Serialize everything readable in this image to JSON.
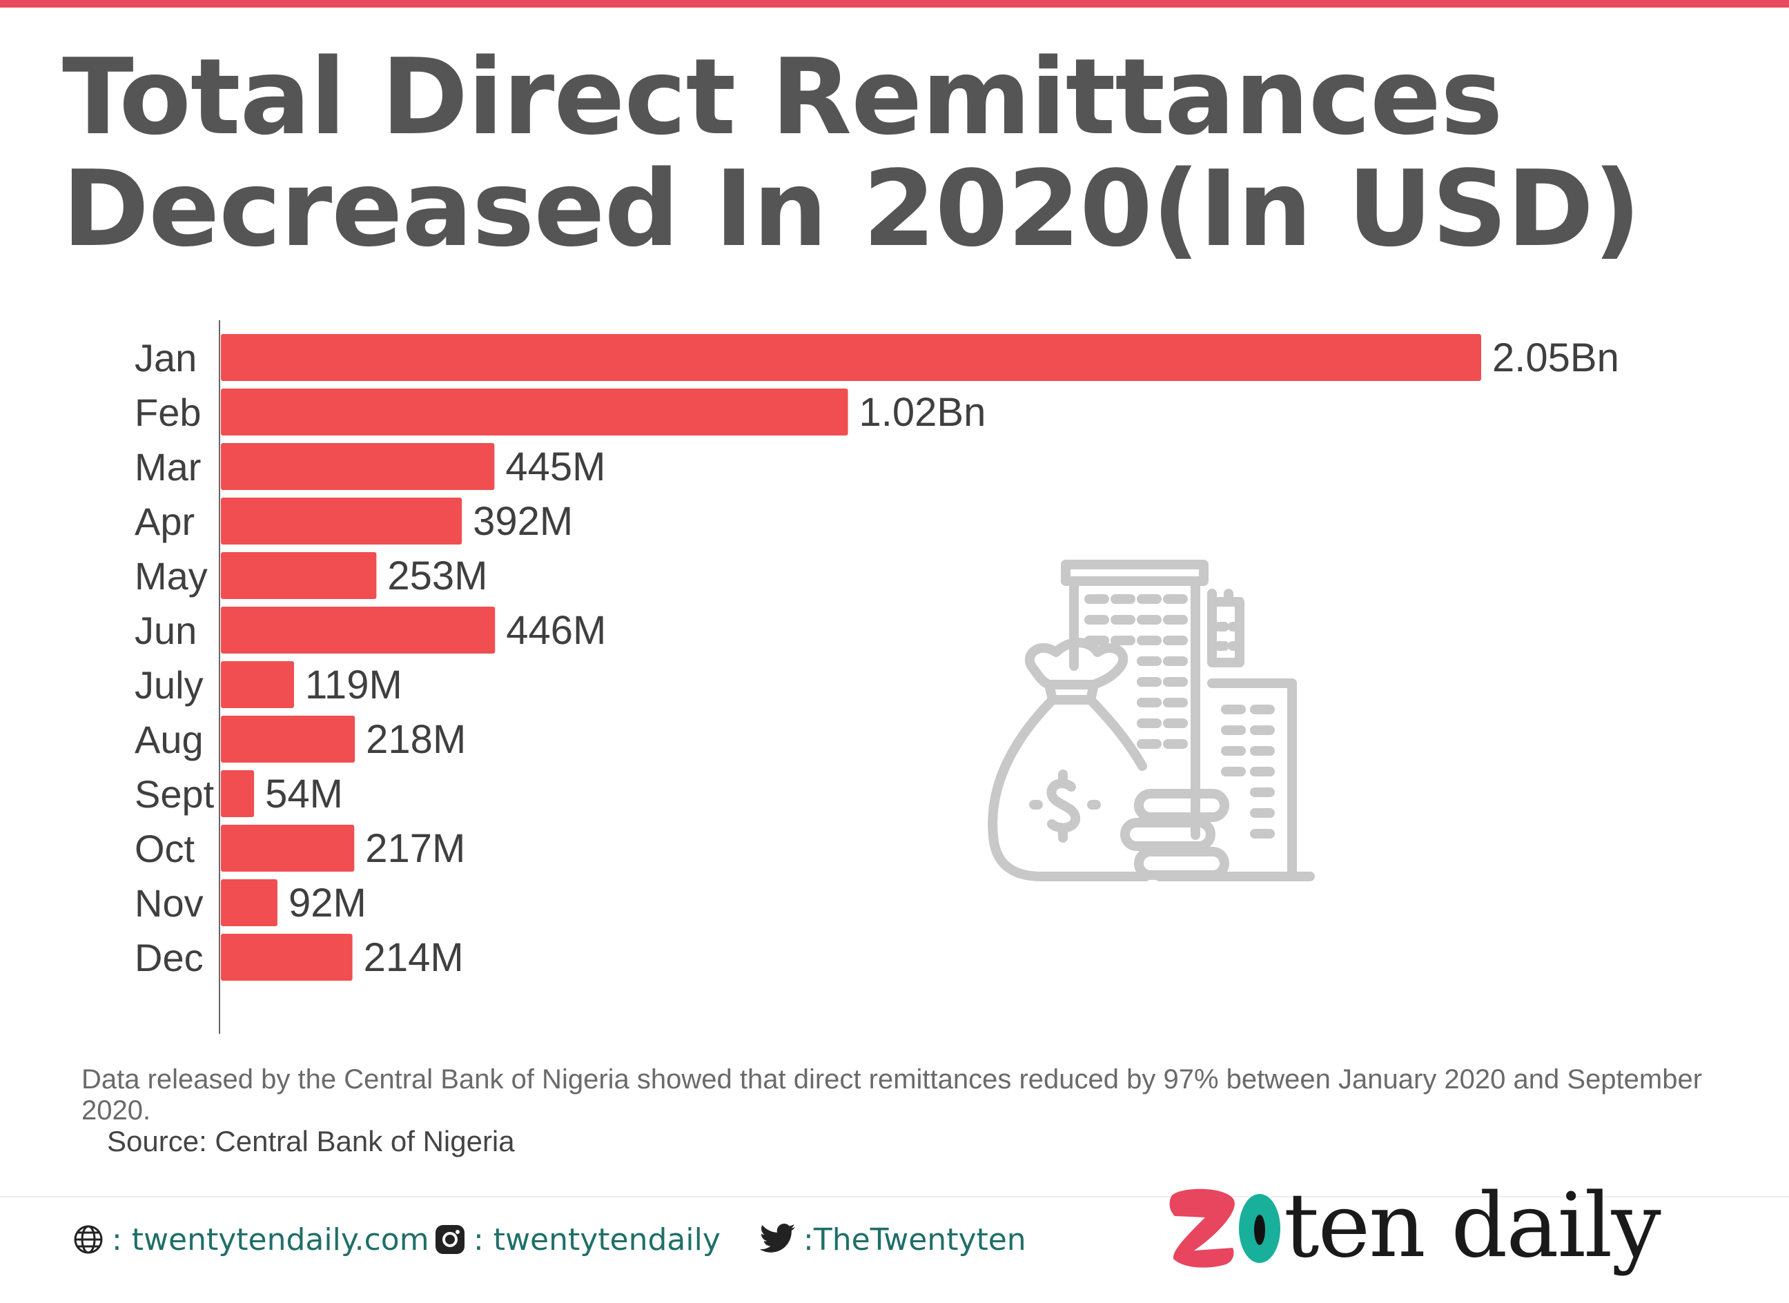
{
  "header": {
    "title": "Total Direct Remittances Decreased In 2020(In USD)"
  },
  "colors": {
    "accent": "#e84a5f",
    "bar": "#f04e51",
    "text": "#555555",
    "footer_text": "#1f6f68",
    "illustration": "#c8c8c8"
  },
  "chart_data": {
    "type": "bar",
    "orientation": "horizontal",
    "categories": [
      "Jan",
      "Feb",
      "Mar",
      "Apr",
      "May",
      "Jun",
      "July",
      "Aug",
      "Sept",
      "Oct",
      "Nov",
      "Dec"
    ],
    "values": [
      2050000000,
      1020000000,
      445000000,
      392000000,
      253000000,
      446000000,
      119000000,
      218000000,
      54000000,
      217000000,
      92000000,
      214000000
    ],
    "data_labels": [
      "2.05Bn",
      "1.02Bn",
      "445M",
      "392M",
      "253M",
      "446M",
      "119M",
      "218M",
      "54M",
      "217M",
      "92M",
      "214M"
    ],
    "title": "Total Direct Remittances Decreased In 2020(In USD)",
    "xlabel": "",
    "ylabel": "",
    "grid": false,
    "legend": "none"
  },
  "note": "Data released by the Central Bank of Nigeria showed that direct remittances reduced by 97% between January 2020 and September 2020.",
  "source": "Source: Central Bank of Nigeria",
  "footer": {
    "website": ": twentytendaily.com",
    "instagram": ": twentytendaily",
    "twitter": ":TheTwentyten",
    "brand": "ten daily",
    "icons": [
      "globe-icon",
      "instagram-icon",
      "twitter-icon"
    ]
  }
}
